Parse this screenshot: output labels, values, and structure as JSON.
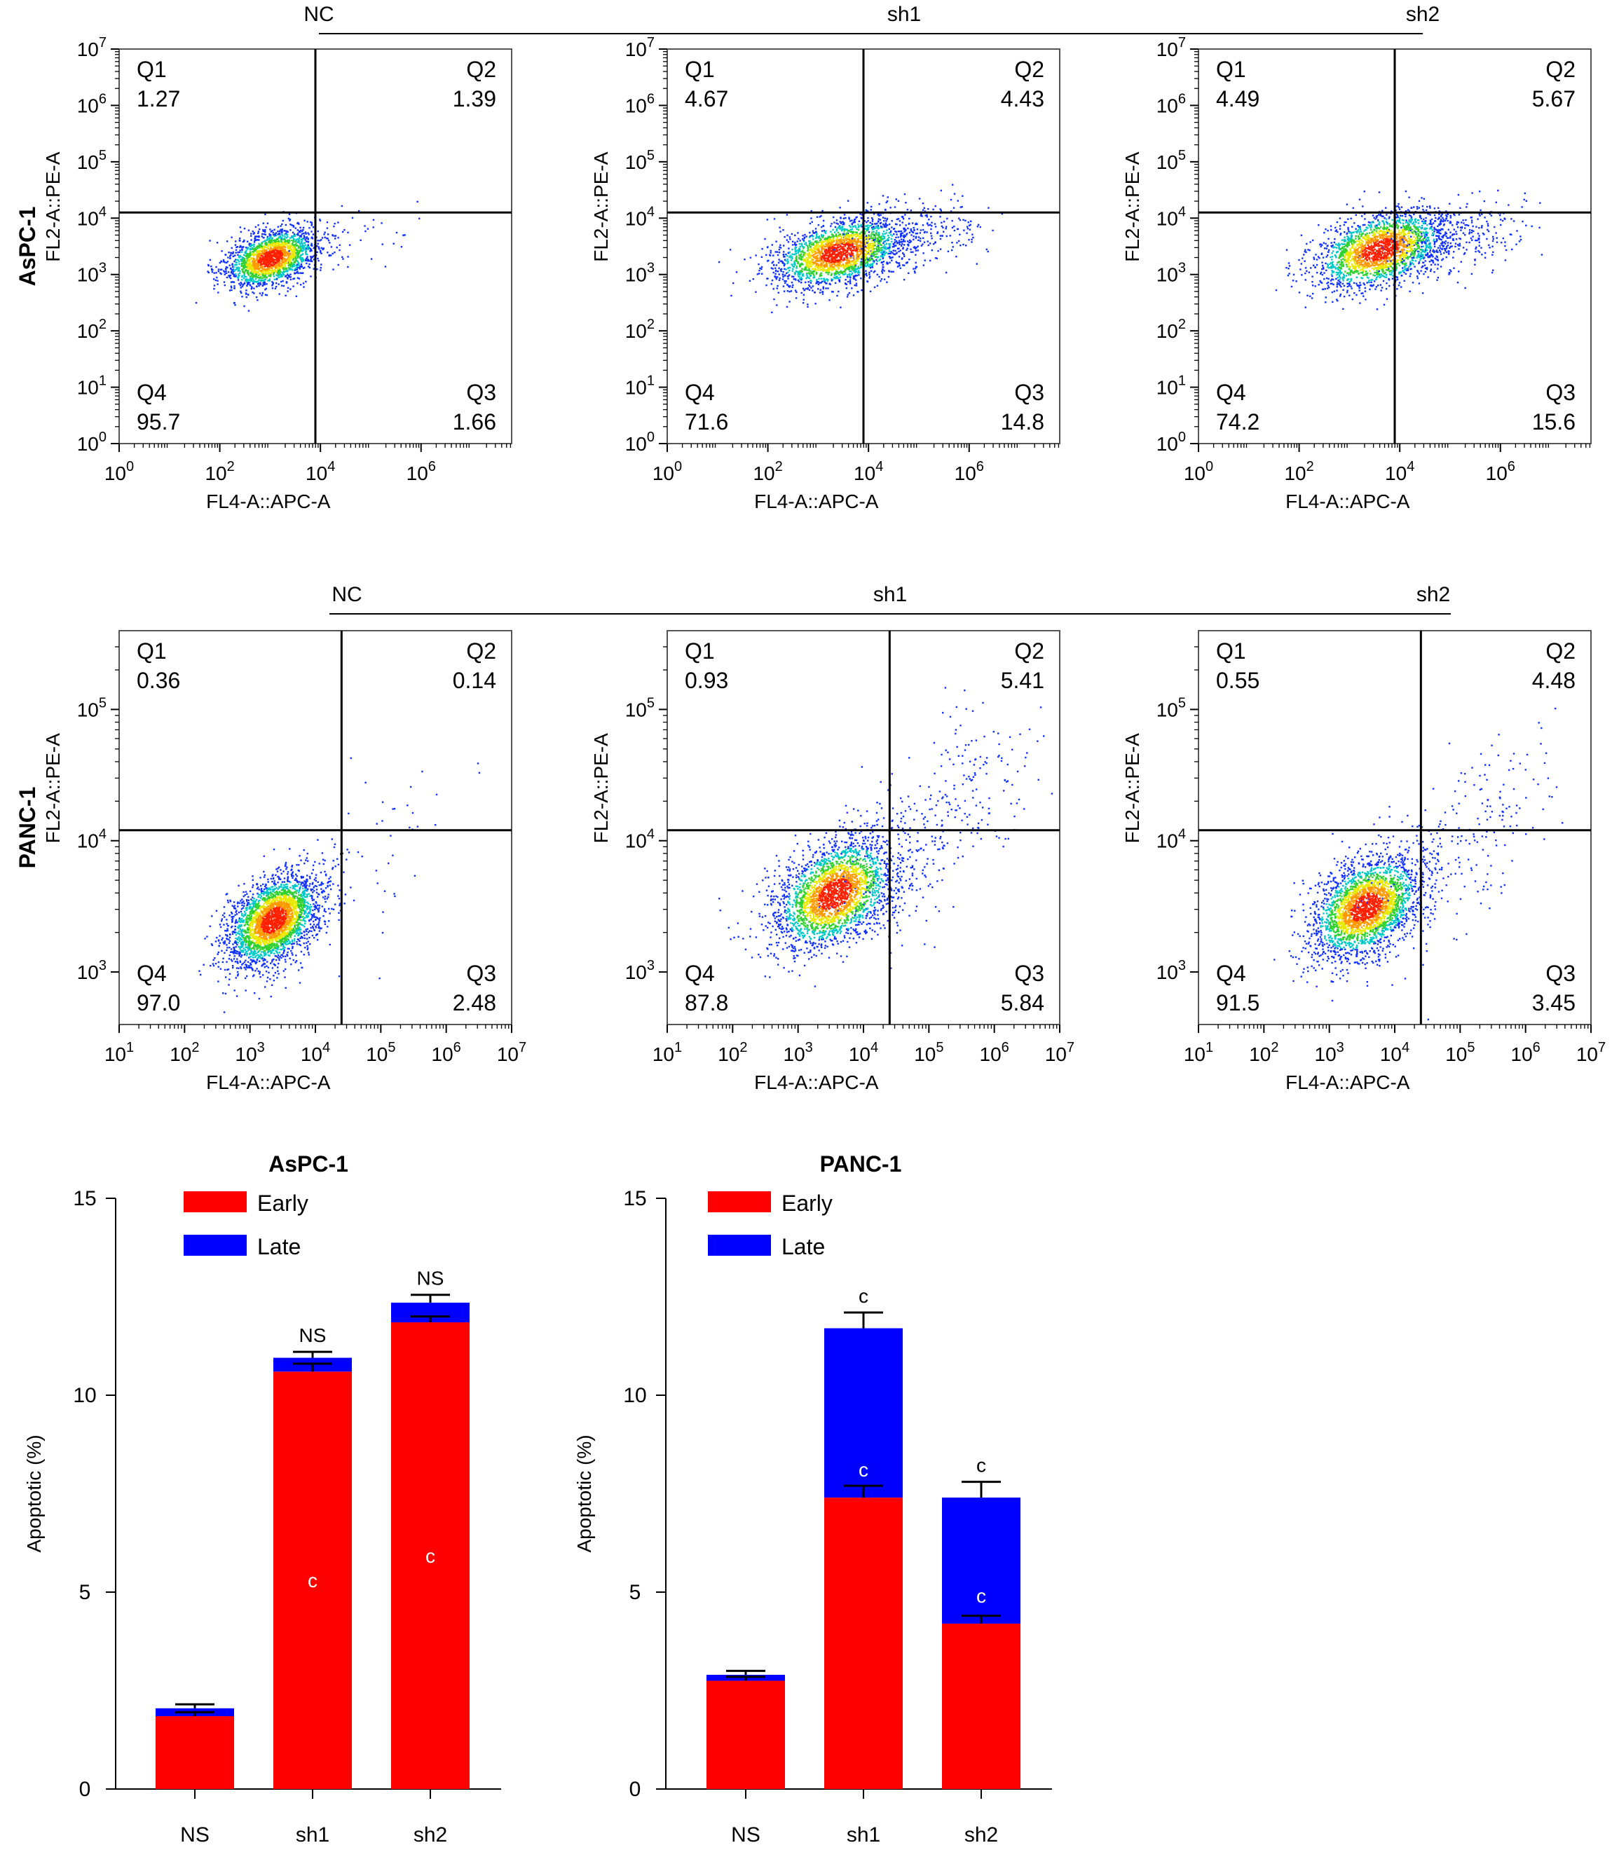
{
  "chart_data": [
    {
      "type": "scatter",
      "row_label": "AsPC-1",
      "group_bracket": [
        "NC",
        "sh1",
        "sh2"
      ],
      "panels": [
        {
          "group": "NC",
          "xlabel": "FL4-A::APC-A",
          "ylabel": "FL2-A::PE-A",
          "x_ticks": [
            "10^0",
            "10^2",
            "10^4",
            "10^6"
          ],
          "y_ticks": [
            "10^0",
            "10^1",
            "10^2",
            "10^3",
            "10^4",
            "10^5",
            "10^6",
            "10^7"
          ],
          "quadrants": {
            "Q1": "1.27",
            "Q2": "1.39",
            "Q3": "1.66",
            "Q4": "95.7"
          }
        },
        {
          "group": "sh1",
          "xlabel": "FL4-A::APC-A",
          "ylabel": "FL2-A::PE-A",
          "x_ticks": [
            "10^0",
            "10^2",
            "10^4",
            "10^6"
          ],
          "y_ticks": [
            "10^0",
            "10^1",
            "10^2",
            "10^3",
            "10^4",
            "10^5",
            "10^6",
            "10^7"
          ],
          "quadrants": {
            "Q1": "4.67",
            "Q2": "4.43",
            "Q3": "14.8",
            "Q4": "71.6"
          }
        },
        {
          "group": "sh2",
          "xlabel": "FL4-A::APC-A",
          "ylabel": "FL2-A::PE-A",
          "x_ticks": [
            "10^0",
            "10^2",
            "10^4",
            "10^6"
          ],
          "y_ticks": [
            "10^0",
            "10^1",
            "10^2",
            "10^3",
            "10^4",
            "10^5",
            "10^6",
            "10^7"
          ],
          "quadrants": {
            "Q1": "4.49",
            "Q2": "5.67",
            "Q3": "15.6",
            "Q4": "74.2"
          }
        }
      ]
    },
    {
      "type": "scatter",
      "row_label": "PANC-1",
      "group_bracket": [
        "NC",
        "sh1",
        "sh2"
      ],
      "panels": [
        {
          "group": "NC",
          "xlabel": "FL4-A::APC-A",
          "ylabel": "FL2-A::PE-A",
          "x_ticks": [
            "10^1",
            "10^2",
            "10^3",
            "10^4",
            "10^5",
            "10^6",
            "10^7"
          ],
          "y_ticks": [
            "10^3",
            "10^4",
            "10^5"
          ],
          "quadrants": {
            "Q1": "0.36",
            "Q2": "0.14",
            "Q3": "2.48",
            "Q4": "97.0"
          }
        },
        {
          "group": "sh1",
          "xlabel": "FL4-A::APC-A",
          "ylabel": "FL2-A::PE-A",
          "x_ticks": [
            "10^1",
            "10^2",
            "10^3",
            "10^4",
            "10^5",
            "10^6",
            "10^7"
          ],
          "y_ticks": [
            "10^3",
            "10^4",
            "10^5"
          ],
          "quadrants": {
            "Q1": "0.93",
            "Q2": "5.41",
            "Q3": "5.84",
            "Q4": "87.8"
          }
        },
        {
          "group": "sh2",
          "xlabel": "FL4-A::APC-A",
          "ylabel": "FL2-A::PE-A",
          "x_ticks": [
            "10^1",
            "10^2",
            "10^3",
            "10^4",
            "10^5",
            "10^6",
            "10^7"
          ],
          "y_ticks": [
            "10^3",
            "10^4",
            "10^5"
          ],
          "quadrants": {
            "Q1": "0.55",
            "Q2": "4.48",
            "Q3": "3.45",
            "Q4": "91.5"
          }
        }
      ]
    },
    {
      "type": "bar",
      "stacked": true,
      "title": "AsPC-1",
      "ylabel": "Apoptotic (%)",
      "ylim": [
        0,
        15
      ],
      "y_ticks": [
        "0",
        "5",
        "10",
        "15"
      ],
      "categories": [
        "NS",
        "sh1",
        "sh2"
      ],
      "series": [
        {
          "name": "Early",
          "color": "#ff0000",
          "values": [
            1.85,
            10.6,
            11.85
          ],
          "errors": [
            0.1,
            0.2,
            0.15
          ]
        },
        {
          "name": "Late",
          "color": "#0000ff",
          "values": [
            0.2,
            0.35,
            0.5
          ],
          "errors": [
            0.1,
            0.15,
            0.2
          ]
        }
      ],
      "annotations": {
        "Early": [
          "",
          "c",
          "c"
        ],
        "Total": [
          "",
          "NS",
          "NS"
        ]
      },
      "legend": "top-left"
    },
    {
      "type": "bar",
      "stacked": true,
      "title": "PANC-1",
      "ylabel": "Apoptotic (%)",
      "ylim": [
        0,
        15
      ],
      "y_ticks": [
        "0",
        "5",
        "10",
        "15"
      ],
      "categories": [
        "NS",
        "sh1",
        "sh2"
      ],
      "series": [
        {
          "name": "Early",
          "color": "#ff0000",
          "values": [
            2.75,
            7.4,
            4.2
          ],
          "errors": [
            0.1,
            0.3,
            0.2
          ]
        },
        {
          "name": "Late",
          "color": "#0000ff",
          "values": [
            0.15,
            4.3,
            3.2
          ],
          "errors": [
            0.1,
            0.4,
            0.4
          ]
        }
      ],
      "annotations": {
        "Early": [
          "",
          "c",
          "c"
        ],
        "Total": [
          "",
          "c",
          "c"
        ]
      },
      "legend": "top-left"
    }
  ]
}
